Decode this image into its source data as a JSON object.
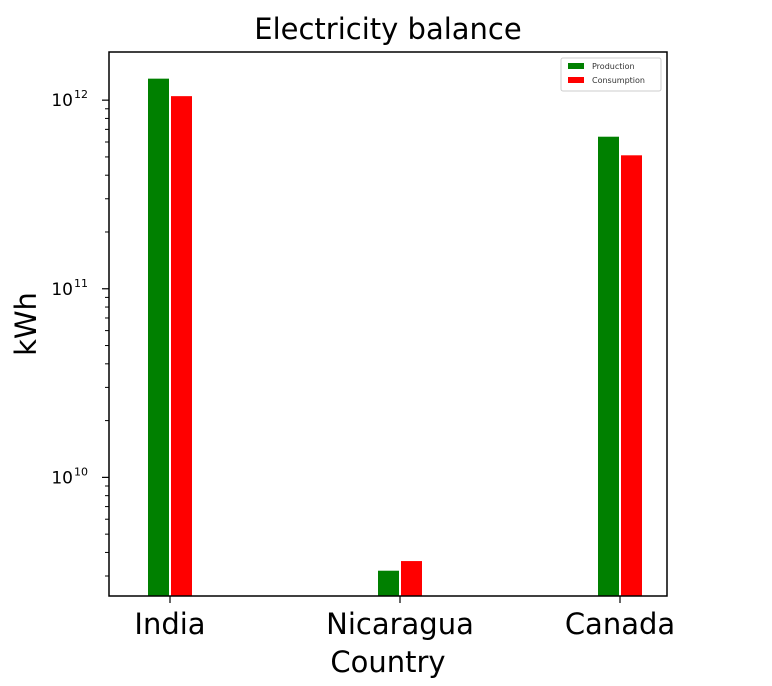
{
  "chart_data": {
    "type": "bar",
    "title": "Electricity balance",
    "xlabel": "Country",
    "ylabel": "kWh",
    "yscale": "log",
    "ylim": [
      2350000000.0,
      1800000000000.0
    ],
    "categories": [
      "India",
      "Nicaragua",
      "Canada"
    ],
    "series": [
      {
        "name": "Production",
        "color": "#008000",
        "values": [
          1300000000000.0,
          3200000000.0,
          640000000000.0
        ]
      },
      {
        "name": "Consumption",
        "color": "#ff0000",
        "values": [
          1050000000000.0,
          3600000000.0,
          510000000000.0
        ]
      }
    ],
    "yticks": [
      {
        "value": 10000000000.0,
        "base": "10",
        "exp": "10"
      },
      {
        "value": 100000000000.0,
        "base": "10",
        "exp": "11"
      },
      {
        "value": 1000000000000.0,
        "base": "10",
        "exp": "12"
      }
    ],
    "legend": {
      "position": "upper right"
    }
  }
}
